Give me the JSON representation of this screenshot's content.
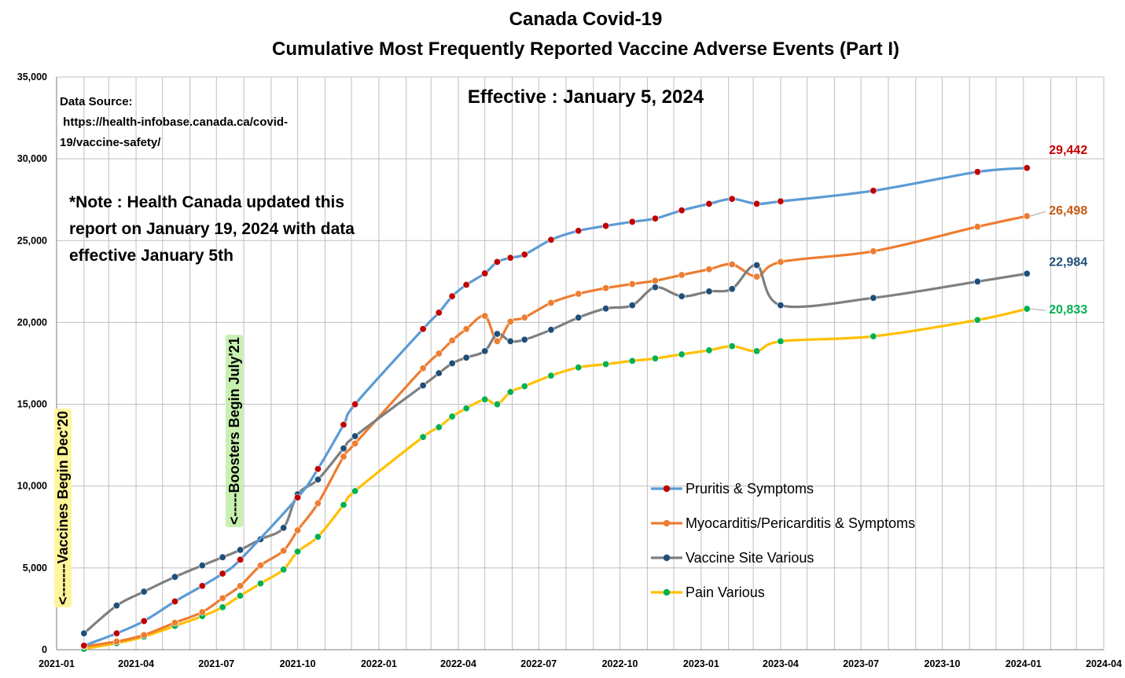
{
  "chart_data": {
    "type": "line",
    "title": "Canada Covid-19",
    "subtitle": "Cumulative Most Frequently Reported Vaccine Adverse Events (Part I)",
    "effective": "Effective : January 5, 2024",
    "data_source": [
      "Data Source:",
      " https://health-infobase.canada.ca/covid-",
      "19/vaccine-safety/"
    ],
    "note": [
      "*Note : Health Canada updated this",
      "report on January 19, 2024 with data",
      "effective January 5th"
    ],
    "annotations": [
      {
        "text": "<-------Vaccines Begin Dec'20",
        "x": "2020-12",
        "color": "#fff59a"
      },
      {
        "text": "<-----Boosters Begin July'21",
        "x": "2021-07",
        "color": "#c8f0b0"
      }
    ],
    "x_ticks": [
      "2021-01",
      "2021-04",
      "2021-07",
      "2021-10",
      "2022-01",
      "2022-04",
      "2022-07",
      "2022-10",
      "2023-01",
      "2023-04",
      "2023-07",
      "2023-10",
      "2024-01",
      "2024-04"
    ],
    "y_ticks": [
      "0",
      "5,000",
      "10,000",
      "15,000",
      "20,000",
      "25,000",
      "30,000",
      "35,000"
    ],
    "ylim": [
      0,
      35000
    ],
    "xlim": [
      "2021-01-01",
      "2024-04-01"
    ],
    "grid": true,
    "legend_position": "bottom-right",
    "series": [
      {
        "name": "Pruritis & Symptoms",
        "line_color": "#5b9bd5",
        "marker_color": "#c00000",
        "end_label": "29,442",
        "points": [
          [
            "2021-02-01",
            250
          ],
          [
            "2021-03-10",
            1000
          ],
          [
            "2021-04-10",
            1750
          ],
          [
            "2021-05-15",
            2950
          ],
          [
            "2021-06-15",
            3900
          ],
          [
            "2021-07-08",
            4650
          ],
          [
            "2021-07-28",
            5500
          ],
          [
            "2021-10-01",
            9300
          ],
          [
            "2021-10-24",
            11050
          ],
          [
            "2021-11-22",
            13750
          ],
          [
            "2021-12-05",
            15000
          ],
          [
            "2022-02-20",
            19600
          ],
          [
            "2022-03-10",
            20600
          ],
          [
            "2022-03-25",
            21600
          ],
          [
            "2022-04-10",
            22300
          ],
          [
            "2022-05-01",
            23000
          ],
          [
            "2022-05-15",
            23700
          ],
          [
            "2022-05-30",
            23950
          ],
          [
            "2022-06-15",
            24150
          ],
          [
            "2022-07-15",
            25050
          ],
          [
            "2022-08-15",
            25600
          ],
          [
            "2022-09-15",
            25900
          ],
          [
            "2022-10-15",
            26150
          ],
          [
            "2022-11-10",
            26350
          ],
          [
            "2022-12-10",
            26850
          ],
          [
            "2023-01-10",
            27250
          ],
          [
            "2023-02-05",
            27550
          ],
          [
            "2023-03-05",
            27250
          ],
          [
            "2023-04-01",
            27400
          ],
          [
            "2023-07-15",
            28050
          ],
          [
            "2023-11-10",
            29200
          ],
          [
            "2024-01-05",
            29442
          ]
        ]
      },
      {
        "name": "Myocarditis/Pericarditis & Symptoms",
        "line_color": "#ed7d31",
        "marker_color": "#ed7d31",
        "end_label": "26,498",
        "points": [
          [
            "2021-02-01",
            200
          ],
          [
            "2021-03-10",
            500
          ],
          [
            "2021-04-10",
            900
          ],
          [
            "2021-05-15",
            1650
          ],
          [
            "2021-06-15",
            2300
          ],
          [
            "2021-07-08",
            3150
          ],
          [
            "2021-07-28",
            3900
          ],
          [
            "2021-08-20",
            5150
          ],
          [
            "2021-09-15",
            6050
          ],
          [
            "2021-10-01",
            7300
          ],
          [
            "2021-10-24",
            8950
          ],
          [
            "2021-11-22",
            11800
          ],
          [
            "2021-12-05",
            12600
          ],
          [
            "2022-02-20",
            17200
          ],
          [
            "2022-03-10",
            18100
          ],
          [
            "2022-03-25",
            18900
          ],
          [
            "2022-04-10",
            19600
          ],
          [
            "2022-05-01",
            20400
          ],
          [
            "2022-05-15",
            18850
          ],
          [
            "2022-05-30",
            20050
          ],
          [
            "2022-06-15",
            20300
          ],
          [
            "2022-07-15",
            21200
          ],
          [
            "2022-08-15",
            21750
          ],
          [
            "2022-09-15",
            22100
          ],
          [
            "2022-10-15",
            22350
          ],
          [
            "2022-11-10",
            22550
          ],
          [
            "2022-12-10",
            22900
          ],
          [
            "2023-01-10",
            23250
          ],
          [
            "2023-02-05",
            23550
          ],
          [
            "2023-03-05",
            22800
          ],
          [
            "2023-04-01",
            23700
          ],
          [
            "2023-07-15",
            24350
          ],
          [
            "2023-11-10",
            25850
          ],
          [
            "2024-01-05",
            26498
          ]
        ]
      },
      {
        "name": "Vaccine Site Various",
        "line_color": "#7f7f7f",
        "marker_color": "#1f4e79",
        "end_label": "22,984",
        "points": [
          [
            "2021-02-01",
            1000
          ],
          [
            "2021-03-10",
            2700
          ],
          [
            "2021-04-10",
            3550
          ],
          [
            "2021-05-15",
            4450
          ],
          [
            "2021-06-15",
            5150
          ],
          [
            "2021-07-08",
            5650
          ],
          [
            "2021-07-28",
            6100
          ],
          [
            "2021-08-20",
            6750
          ],
          [
            "2021-09-15",
            7450
          ],
          [
            "2021-10-01",
            9500
          ],
          [
            "2021-10-24",
            10400
          ],
          [
            "2021-11-22",
            12300
          ],
          [
            "2021-12-05",
            13050
          ],
          [
            "2022-02-20",
            16150
          ],
          [
            "2022-03-10",
            16900
          ],
          [
            "2022-03-25",
            17500
          ],
          [
            "2022-04-10",
            17850
          ],
          [
            "2022-05-01",
            18250
          ],
          [
            "2022-05-15",
            19300
          ],
          [
            "2022-05-30",
            18850
          ],
          [
            "2022-06-15",
            18950
          ],
          [
            "2022-07-15",
            19550
          ],
          [
            "2022-08-15",
            20300
          ],
          [
            "2022-09-15",
            20850
          ],
          [
            "2022-10-15",
            21050
          ],
          [
            "2022-11-10",
            22150
          ],
          [
            "2022-12-10",
            21600
          ],
          [
            "2023-01-10",
            21900
          ],
          [
            "2023-02-05",
            22050
          ],
          [
            "2023-03-05",
            23500
          ],
          [
            "2023-04-01",
            21050
          ],
          [
            "2023-07-15",
            21500
          ],
          [
            "2023-11-10",
            22500
          ],
          [
            "2024-01-05",
            22984
          ]
        ]
      },
      {
        "name": "Pain Various",
        "line_color": "#ffc000",
        "marker_color": "#00b050",
        "end_label": "20,833",
        "points": [
          [
            "2021-02-01",
            50
          ],
          [
            "2021-03-10",
            400
          ],
          [
            "2021-04-10",
            800
          ],
          [
            "2021-05-15",
            1450
          ],
          [
            "2021-06-15",
            2050
          ],
          [
            "2021-07-08",
            2600
          ],
          [
            "2021-07-28",
            3300
          ],
          [
            "2021-08-20",
            4050
          ],
          [
            "2021-09-15",
            4900
          ],
          [
            "2021-10-01",
            6000
          ],
          [
            "2021-10-24",
            6900
          ],
          [
            "2021-11-22",
            8850
          ],
          [
            "2021-12-05",
            9700
          ],
          [
            "2022-02-20",
            13000
          ],
          [
            "2022-03-10",
            13600
          ],
          [
            "2022-03-25",
            14250
          ],
          [
            "2022-04-10",
            14750
          ],
          [
            "2022-05-01",
            15300
          ],
          [
            "2022-05-15",
            15000
          ],
          [
            "2022-05-30",
            15750
          ],
          [
            "2022-06-15",
            16100
          ],
          [
            "2022-07-15",
            16750
          ],
          [
            "2022-08-15",
            17250
          ],
          [
            "2022-09-15",
            17450
          ],
          [
            "2022-10-15",
            17650
          ],
          [
            "2022-11-10",
            17800
          ],
          [
            "2022-12-10",
            18050
          ],
          [
            "2023-01-10",
            18300
          ],
          [
            "2023-02-05",
            18550
          ],
          [
            "2023-03-05",
            18250
          ],
          [
            "2023-04-01",
            18850
          ],
          [
            "2023-07-15",
            19150
          ],
          [
            "2023-11-10",
            20150
          ],
          [
            "2024-01-05",
            20833
          ]
        ]
      }
    ]
  }
}
